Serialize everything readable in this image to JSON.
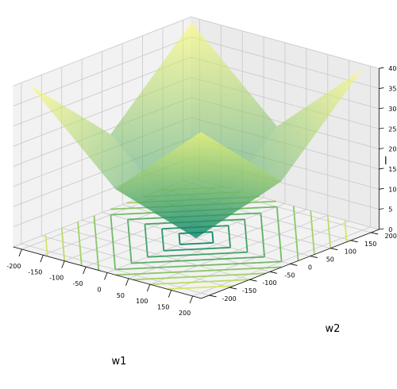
{
  "chart_data": {
    "type": "surface3d",
    "function": "|w1| / 10 + |w2| / 10",
    "xlabel": "w1",
    "ylabel": "w2",
    "zlabel": "l",
    "xlim": [
      -220,
      220
    ],
    "ylim": [
      -220,
      220
    ],
    "zlim": [
      0,
      40
    ],
    "x_ticks": [
      "-200",
      "-150",
      "-100",
      "-50",
      "0",
      "50",
      "100",
      "150",
      "200"
    ],
    "y_ticks": [
      "-200",
      "-150",
      "-100",
      "-50",
      "0",
      "50",
      "100",
      "150",
      "200"
    ],
    "z_ticks": [
      "0",
      "5",
      "10",
      "15",
      "20",
      "25",
      "30",
      "35",
      "40"
    ],
    "grid": true,
    "colormap": "summer",
    "colormap_colors": [
      "#008066",
      "#80c066",
      "#ffff66"
    ],
    "surface_alpha": 0.55,
    "contour_levels": [
      4,
      8,
      12,
      16,
      20,
      24,
      28,
      32,
      36
    ],
    "x_tick_values": [
      -200,
      -150,
      -100,
      -50,
      0,
      50,
      100,
      150,
      200
    ],
    "y_tick_values": [
      -200,
      -150,
      -100,
      -50,
      0,
      50,
      100,
      150,
      200
    ],
    "z_tick_values": [
      0,
      5,
      10,
      15,
      20,
      25,
      30,
      35,
      40
    ]
  }
}
